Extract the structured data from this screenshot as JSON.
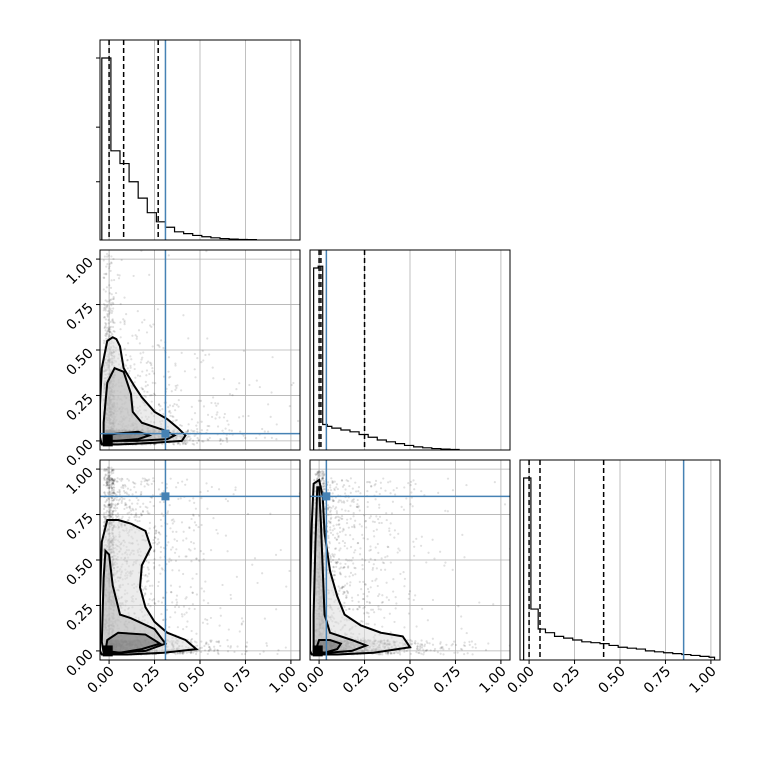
{
  "chart_data": {
    "type": "corner",
    "n_params": 3,
    "axis_range": [
      -0.05,
      1.05
    ],
    "ticks": [
      0.0,
      0.25,
      0.5,
      0.75,
      1.0
    ],
    "tick_labels": [
      "0.00",
      "0.25",
      "0.50",
      "0.75",
      "1.00"
    ],
    "truths": [
      0.31,
      0.04,
      0.85
    ],
    "truth_color": "#4682b4",
    "quantiles": [
      [
        0.0,
        0.08,
        0.27
      ],
      [
        0.0,
        0.01,
        0.25
      ],
      [
        0.0,
        0.06,
        0.41
      ]
    ],
    "histograms": [
      {
        "param": 0,
        "bin_edges": [
          -0.04,
          0.01,
          0.06,
          0.11,
          0.16,
          0.21,
          0.26,
          0.31,
          0.36,
          0.41,
          0.46,
          0.51,
          0.56,
          0.61,
          0.66,
          0.71,
          0.76,
          0.81
        ],
        "counts": [
          1.0,
          0.49,
          0.42,
          0.32,
          0.23,
          0.15,
          0.1,
          0.07,
          0.045,
          0.035,
          0.025,
          0.018,
          0.012,
          0.008,
          0.005,
          0.003,
          0.002
        ]
      },
      {
        "param": 1,
        "bin_edges": [
          -0.03,
          -0.005,
          0.02,
          0.045,
          0.07,
          0.12,
          0.17,
          0.22,
          0.27,
          0.32,
          0.37,
          0.42,
          0.47,
          0.52,
          0.57,
          0.62,
          0.67,
          0.72,
          0.77
        ],
        "counts": [
          1.0,
          1.01,
          0.14,
          0.13,
          0.12,
          0.11,
          0.1,
          0.085,
          0.07,
          0.055,
          0.045,
          0.035,
          0.025,
          0.017,
          0.012,
          0.008,
          0.005,
          0.003
        ]
      },
      {
        "param": 2,
        "bin_edges": [
          -0.03,
          0.01,
          0.05,
          0.09,
          0.14,
          0.19,
          0.24,
          0.29,
          0.34,
          0.39,
          0.44,
          0.49,
          0.54,
          0.59,
          0.64,
          0.69,
          0.74,
          0.79,
          0.84,
          0.89,
          0.94,
          0.99,
          1.02
        ],
        "counts": [
          1.0,
          0.28,
          0.17,
          0.15,
          0.13,
          0.12,
          0.11,
          0.1,
          0.095,
          0.09,
          0.08,
          0.07,
          0.065,
          0.06,
          0.05,
          0.045,
          0.04,
          0.035,
          0.03,
          0.025,
          0.02,
          0.015
        ]
      }
    ],
    "pairs": [
      {
        "x_param": 0,
        "y_param": 1,
        "contours": [
          [
            [
              -0.02,
              0.0
            ],
            [
              0.04,
              0.0
            ],
            [
              0.16,
              0.01
            ],
            [
              0.22,
              0.03
            ],
            [
              0.16,
              0.05
            ],
            [
              0.04,
              0.04
            ],
            [
              -0.02,
              0.03
            ]
          ],
          [
            [
              -0.03,
              -0.01
            ],
            [
              0.02,
              0.0
            ],
            [
              0.15,
              0.0
            ],
            [
              0.32,
              0.01
            ],
            [
              0.36,
              0.03
            ],
            [
              0.3,
              0.06
            ],
            [
              0.18,
              0.1
            ],
            [
              0.13,
              0.16
            ],
            [
              0.12,
              0.26
            ],
            [
              0.08,
              0.38
            ],
            [
              0.03,
              0.4
            ],
            [
              -0.01,
              0.32
            ],
            [
              -0.03,
              0.1
            ]
          ],
          [
            [
              -0.04,
              -0.02
            ],
            [
              0.05,
              -0.02
            ],
            [
              0.25,
              -0.01
            ],
            [
              0.4,
              0.0
            ],
            [
              0.42,
              0.03
            ],
            [
              0.38,
              0.07
            ],
            [
              0.32,
              0.12
            ],
            [
              0.25,
              0.16
            ],
            [
              0.18,
              0.24
            ],
            [
              0.14,
              0.3
            ],
            [
              0.08,
              0.4
            ],
            [
              0.06,
              0.52
            ],
            [
              0.04,
              0.56
            ],
            [
              0.02,
              0.57
            ],
            [
              -0.01,
              0.55
            ],
            [
              -0.04,
              0.4
            ],
            [
              -0.05,
              0.2
            ],
            [
              -0.05,
              0.02
            ]
          ]
        ]
      },
      {
        "x_param": 0,
        "y_param": 2,
        "contours": [
          [
            [
              -0.02,
              0.0
            ],
            [
              0.06,
              -0.01
            ],
            [
              0.18,
              0.01
            ],
            [
              0.28,
              0.04
            ],
            [
              0.2,
              0.09
            ],
            [
              0.05,
              0.1
            ],
            [
              -0.01,
              0.06
            ]
          ],
          [
            [
              -0.03,
              -0.01
            ],
            [
              0.05,
              -0.01
            ],
            [
              0.2,
              0.0
            ],
            [
              0.31,
              0.04
            ],
            [
              0.25,
              0.12
            ],
            [
              0.12,
              0.18
            ],
            [
              0.06,
              0.2
            ],
            [
              0.04,
              0.28
            ],
            [
              0.02,
              0.36
            ],
            [
              0.0,
              0.53
            ],
            [
              -0.02,
              0.55
            ],
            [
              -0.03,
              0.4
            ],
            [
              -0.04,
              0.05
            ]
          ],
          [
            [
              -0.04,
              -0.02
            ],
            [
              0.1,
              -0.02
            ],
            [
              0.3,
              -0.01
            ],
            [
              0.48,
              0.01
            ],
            [
              0.42,
              0.06
            ],
            [
              0.32,
              0.1
            ],
            [
              0.25,
              0.16
            ],
            [
              0.2,
              0.24
            ],
            [
              0.17,
              0.35
            ],
            [
              0.18,
              0.47
            ],
            [
              0.23,
              0.57
            ],
            [
              0.2,
              0.66
            ],
            [
              0.12,
              0.7
            ],
            [
              0.05,
              0.72
            ],
            [
              -0.01,
              0.72
            ],
            [
              -0.04,
              0.6
            ],
            [
              -0.05,
              0.3
            ],
            [
              -0.05,
              0.0
            ]
          ]
        ]
      },
      {
        "x_param": 1,
        "y_param": 2,
        "contours": [
          [
            [
              -0.02,
              0.0
            ],
            [
              0.03,
              -0.01
            ],
            [
              0.1,
              0.01
            ],
            [
              0.12,
              0.04
            ],
            [
              0.06,
              0.06
            ],
            [
              0.0,
              0.06
            ]
          ],
          [
            [
              -0.03,
              -0.01
            ],
            [
              0.05,
              -0.01
            ],
            [
              0.18,
              0.0
            ],
            [
              0.26,
              0.03
            ],
            [
              0.18,
              0.06
            ],
            [
              0.06,
              0.1
            ],
            [
              0.03,
              0.2
            ],
            [
              0.02,
              0.45
            ],
            [
              0.01,
              0.7
            ],
            [
              0.0,
              0.9
            ],
            [
              -0.01,
              0.9
            ],
            [
              -0.02,
              0.6
            ],
            [
              -0.03,
              0.2
            ]
          ],
          [
            [
              -0.04,
              -0.02
            ],
            [
              0.1,
              -0.02
            ],
            [
              0.3,
              -0.01
            ],
            [
              0.5,
              0.02
            ],
            [
              0.46,
              0.08
            ],
            [
              0.34,
              0.1
            ],
            [
              0.23,
              0.14
            ],
            [
              0.14,
              0.2
            ],
            [
              0.1,
              0.3
            ],
            [
              0.06,
              0.44
            ],
            [
              0.03,
              0.65
            ],
            [
              0.02,
              0.85
            ],
            [
              0.0,
              0.94
            ],
            [
              -0.03,
              0.92
            ],
            [
              -0.04,
              0.7
            ],
            [
              -0.05,
              0.3
            ],
            [
              -0.05,
              0.0
            ]
          ]
        ]
      }
    ]
  }
}
